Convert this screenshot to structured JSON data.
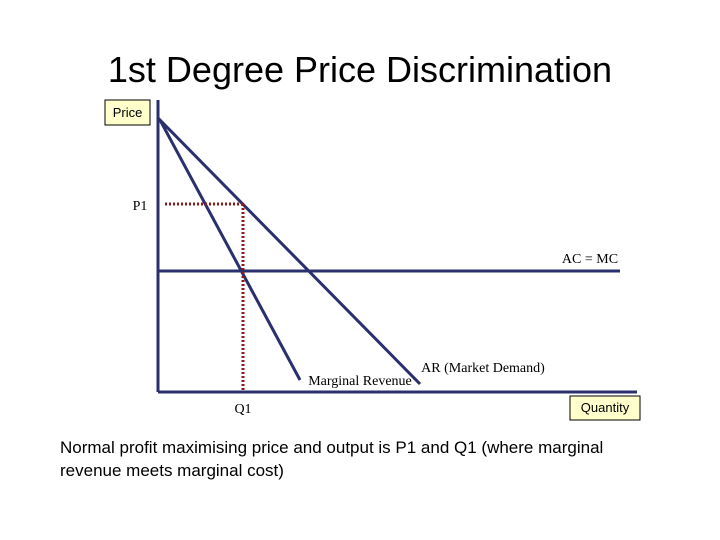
{
  "title": "1st Degree Price Discrimination",
  "axes": {
    "y_label": "Price",
    "x_label": "Quantity"
  },
  "labels": {
    "p1": "P1",
    "q1": "Q1",
    "cost": "AC = MC",
    "mr": "Marginal Revenue",
    "ar": "AR (Market Demand)"
  },
  "caption": [
    "Normal profit maximising price and output is P1 and Q1 (where marginal",
    "revenue meets marginal cost)"
  ]
}
